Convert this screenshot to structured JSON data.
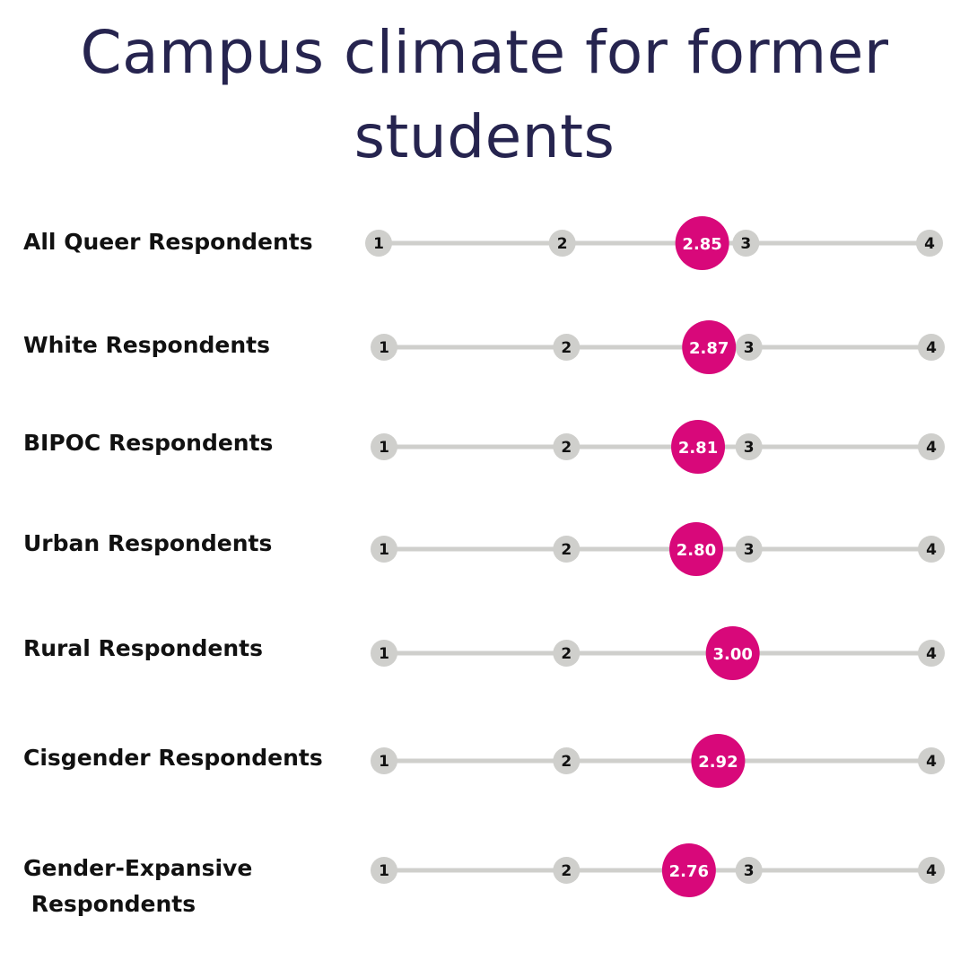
{
  "title_line1": "Campus climate for former",
  "title_line2": "students",
  "colors": {
    "title": "#26244f",
    "track": "#cfcfcc",
    "tick_circle": "#cfcfcc",
    "value_circle": "#d8087a",
    "label": "#111111"
  },
  "chart_data": {
    "type": "dot-scale",
    "title": "Campus climate for former students",
    "scale": [
      1,
      2,
      3,
      4
    ],
    "xlim": [
      1,
      4
    ],
    "rows": [
      {
        "label": "All Queer Respondents",
        "value": 2.85,
        "value_label": "2.85",
        "ticks": [
          "1",
          "2",
          "3",
          "4"
        ]
      },
      {
        "label": "White Respondents",
        "value": 2.87,
        "value_label": "2.87",
        "ticks": [
          "1",
          "2",
          "3",
          "4"
        ]
      },
      {
        "label": "BIPOC Respondents",
        "value": 2.81,
        "value_label": "2.81",
        "ticks": [
          "1",
          "2",
          "3",
          "4"
        ]
      },
      {
        "label": "Urban Respondents",
        "value": 2.8,
        "value_label": "2.80",
        "ticks": [
          "1",
          "2",
          "3",
          "4"
        ]
      },
      {
        "label": "Rural Respondents",
        "value": 3.0,
        "value_label": "3.00",
        "ticks": [
          "1",
          "2",
          "4"
        ]
      },
      {
        "label": "Cisgender Respondents",
        "value": 2.92,
        "value_label": "2.92",
        "ticks": [
          "1",
          "2",
          "4"
        ]
      },
      {
        "label": "Gender-Expansive\n Respondents",
        "value": 2.76,
        "value_label": "2.76",
        "ticks": [
          "1",
          "2",
          "3",
          "4"
        ]
      }
    ]
  }
}
